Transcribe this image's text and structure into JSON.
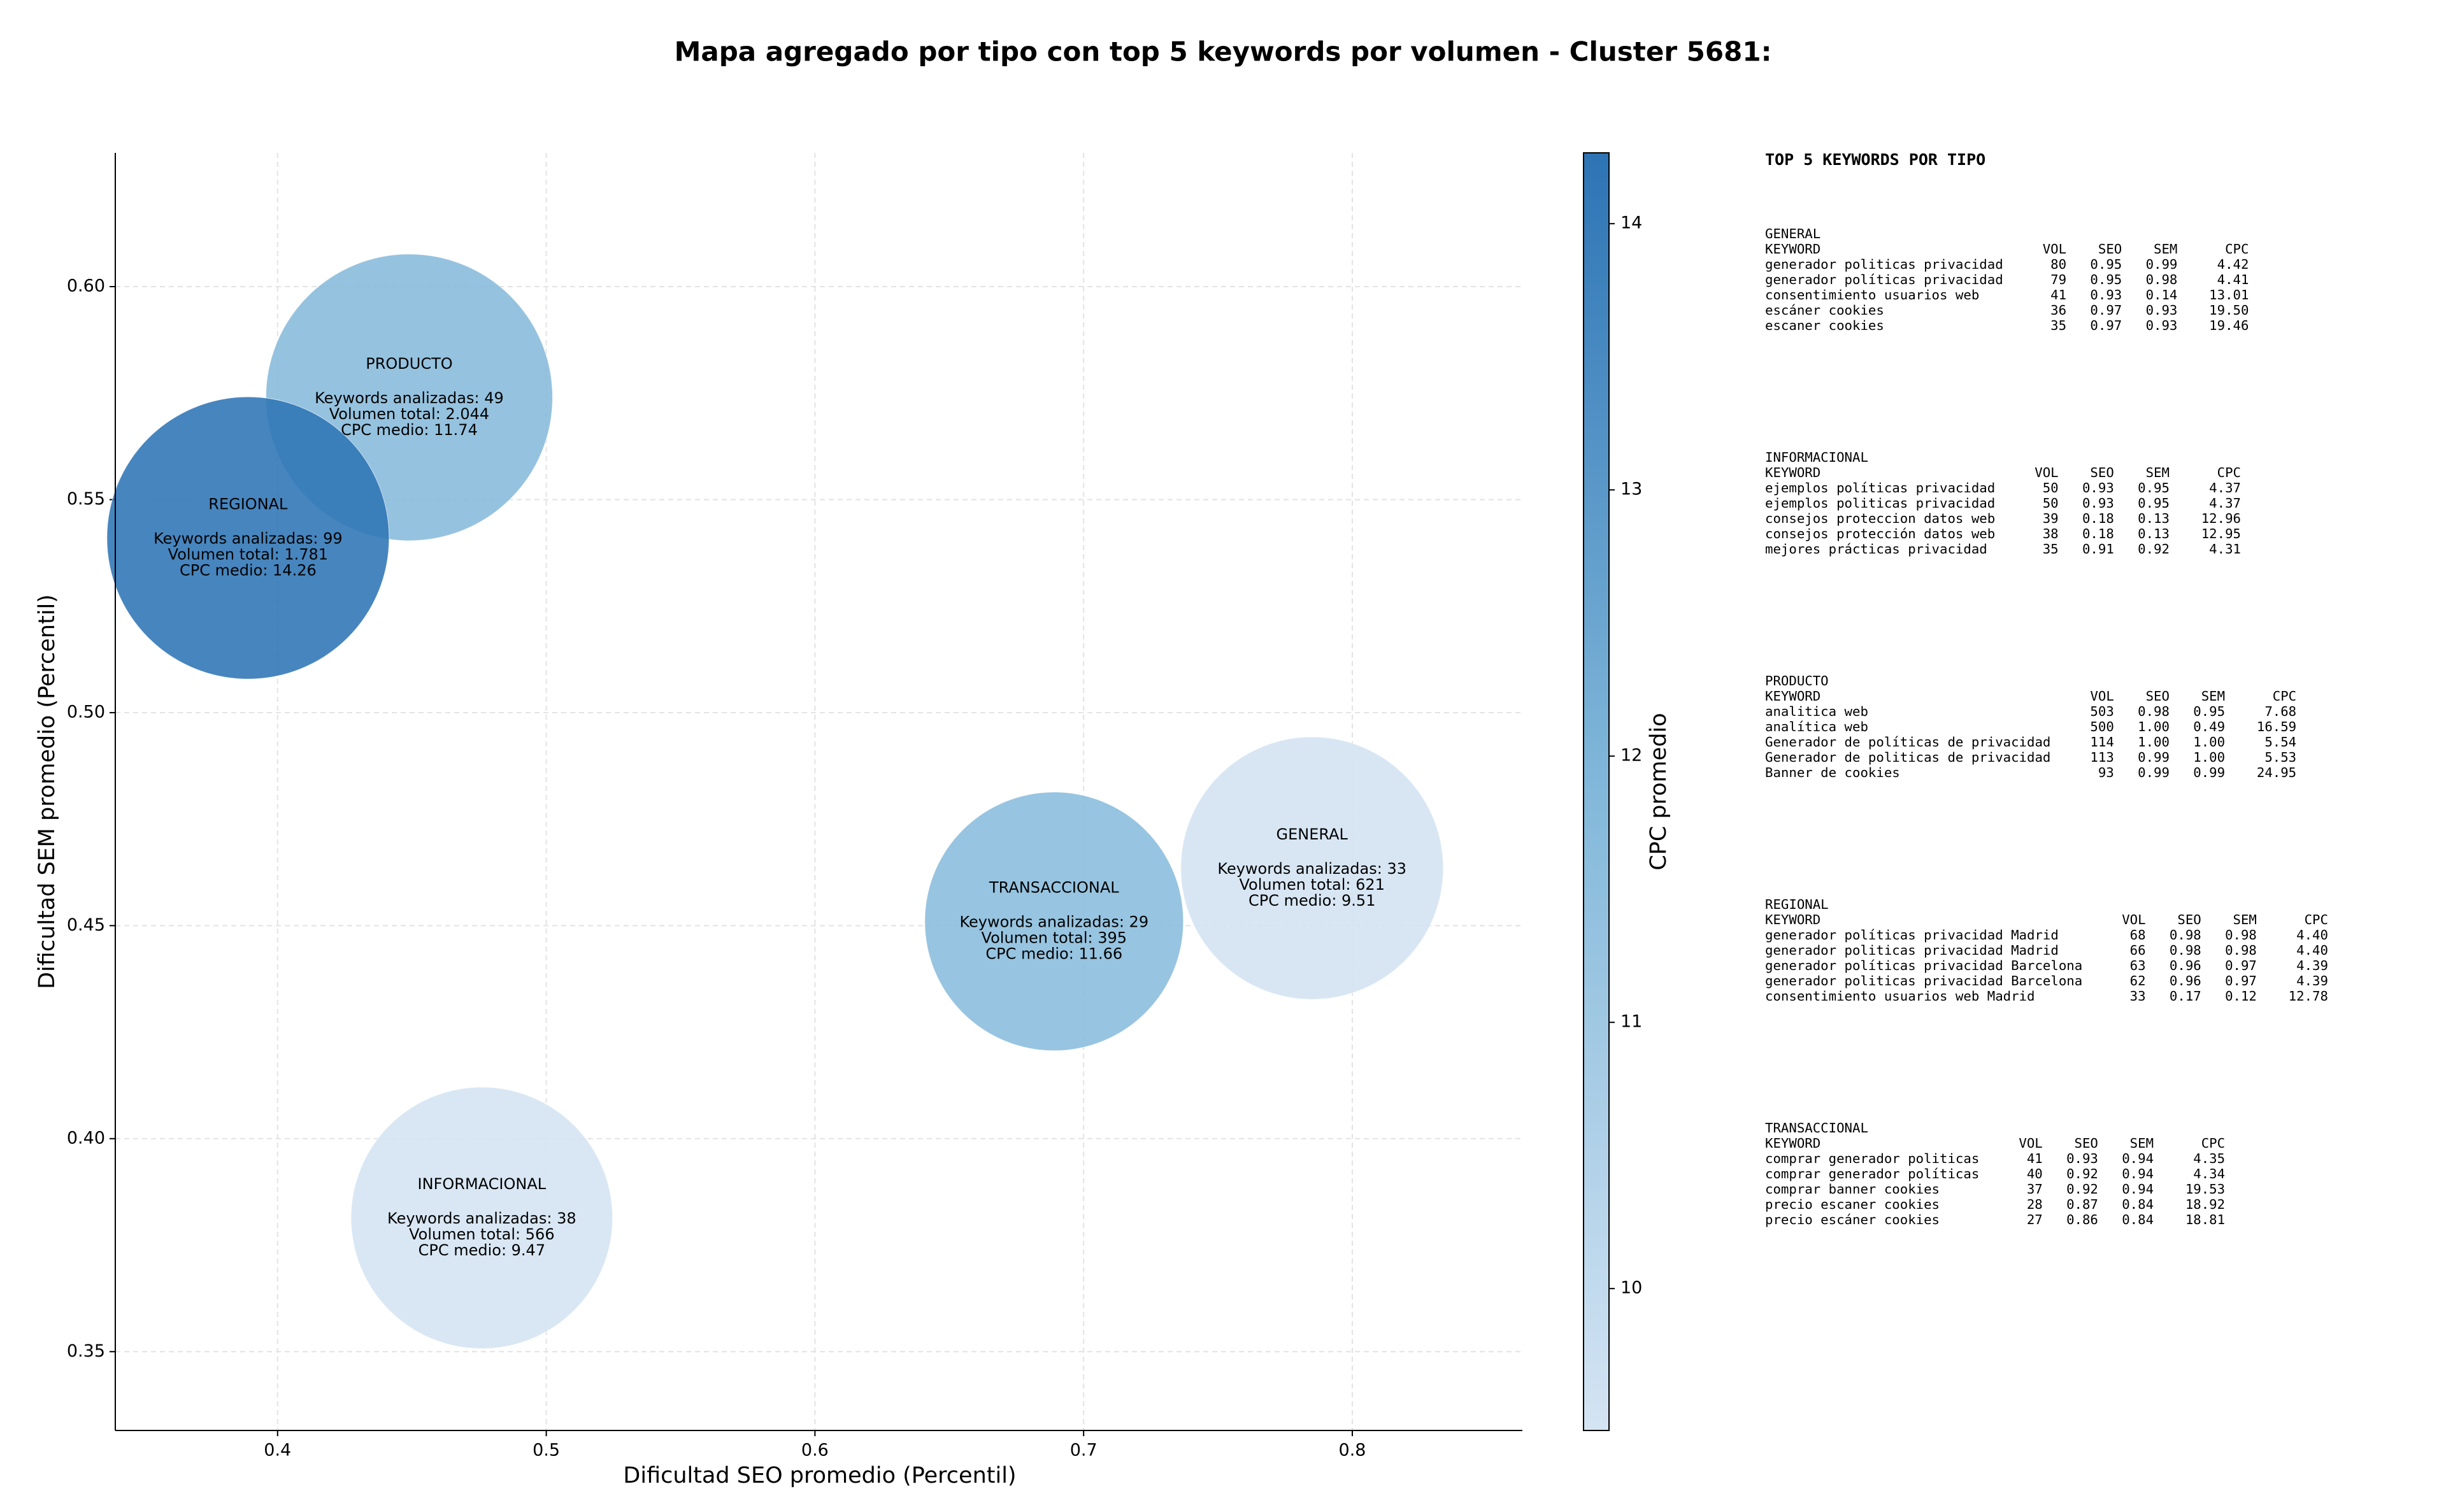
{
  "chart_data": {
    "type": "bubble",
    "title": "Mapa agregado por tipo con top 5 keywords por volumen - Cluster 5681:",
    "xlabel": "Dificultad SEO promedio (Percentil)",
    "ylabel": "Dificultad SEM promedio (Percentil)",
    "colorbar_label": "CPC promedio",
    "categories": [
      "GENERAL",
      "INFORMACIONAL",
      "PRODUCTO",
      "REGIONAL",
      "TRANSACCIONAL"
    ],
    "x": [
      0.785,
      0.476,
      0.449,
      0.389,
      0.689
    ],
    "values": [
      0.4635,
      0.3814,
      0.574,
      0.541,
      0.451
    ],
    "keywords": [
      33,
      38,
      49,
      99,
      29
    ],
    "keywords_labels": [
      "Keywords analizadas: 33",
      "Keywords analizadas: 38",
      "Keywords analizadas: 49",
      "Keywords analizadas: 99",
      "Keywords analizadas: 29"
    ],
    "volume": [
      621,
      566,
      2044,
      1781,
      395
    ],
    "volume_labels": [
      "Volumen total: 621",
      "Volumen total: 566",
      "Volumen total: 2.044",
      "Volumen total: 1.781",
      "Volumen total: 395"
    ],
    "cpc": [
      9.51,
      9.47,
      11.74,
      14.26,
      11.66
    ],
    "cpc_labels": [
      "CPC medio: 9.51",
      "CPC medio: 9.47",
      "CPC medio: 11.74",
      "CPC medio: 14.26",
      "CPC medio: 11.66"
    ],
    "colormap": [
      "#d4e4f3",
      "#82b8da",
      "#2d74b5"
    ],
    "xlim": [
      0.3396,
      0.8633
    ],
    "ylim": [
      0.3315,
      0.6314
    ],
    "clim": [
      9.467,
      14.266
    ],
    "xticks": [
      0.4,
      0.5,
      0.6,
      0.7,
      0.8
    ],
    "yticks": [
      0.35,
      0.4,
      0.45,
      0.5,
      0.55,
      0.6
    ],
    "yticks_display": [
      {
        "value": 0.35,
        "label": "0.35"
      },
      {
        "value": 0.4,
        "label": "0.40"
      },
      {
        "value": 0.45,
        "label": "0.45"
      },
      {
        "value": 0.5,
        "label": "0.50"
      },
      {
        "value": 0.55,
        "label": "0.55"
      },
      {
        "value": 0.6,
        "label": "0.60"
      }
    ],
    "cticks": [
      10,
      11,
      12,
      13,
      14
    ],
    "grid": true
  },
  "side_panel": {
    "title": "TOP 5 KEYWORDS POR TIPO",
    "columns": [
      "KEYWORD",
      "VOL",
      "SEO",
      "SEM",
      "CPC"
    ],
    "groups": [
      {
        "name": "GENERAL",
        "rows": [
          [
            "generador politicas privacidad",
            "80",
            "0.95",
            "0.99",
            "4.42"
          ],
          [
            "generador políticas privacidad",
            "79",
            "0.95",
            "0.98",
            "4.41"
          ],
          [
            "consentimiento usuarios web",
            "41",
            "0.93",
            "0.14",
            "13.01"
          ],
          [
            "escáner cookies",
            "36",
            "0.97",
            "0.93",
            "19.50"
          ],
          [
            "escaner cookies",
            "35",
            "0.97",
            "0.93",
            "19.46"
          ]
        ]
      },
      {
        "name": "INFORMACIONAL",
        "rows": [
          [
            "ejemplos políticas privacidad",
            "50",
            "0.93",
            "0.95",
            "4.37"
          ],
          [
            "ejemplos politicas privacidad",
            "50",
            "0.93",
            "0.95",
            "4.37"
          ],
          [
            "consejos proteccion datos web",
            "39",
            "0.18",
            "0.13",
            "12.96"
          ],
          [
            "consejos protección datos web",
            "38",
            "0.18",
            "0.13",
            "12.95"
          ],
          [
            "mejores prácticas privacidad",
            "35",
            "0.91",
            "0.92",
            "4.31"
          ]
        ]
      },
      {
        "name": "PRODUCTO",
        "rows": [
          [
            "analitica web",
            "503",
            "0.98",
            "0.95",
            "7.68"
          ],
          [
            "analítica web",
            "500",
            "1.00",
            "0.49",
            "16.59"
          ],
          [
            "Generador de políticas de privacidad",
            "114",
            "1.00",
            "1.00",
            "5.54"
          ],
          [
            "Generador de politicas de privacidad",
            "113",
            "0.99",
            "1.00",
            "5.53"
          ],
          [
            "Banner de cookies",
            "93",
            "0.99",
            "0.99",
            "24.95"
          ]
        ]
      },
      {
        "name": "REGIONAL",
        "rows": [
          [
            "generador políticas privacidad Madrid",
            "68",
            "0.98",
            "0.98",
            "4.40"
          ],
          [
            "generador politicas privacidad Madrid",
            "66",
            "0.98",
            "0.98",
            "4.40"
          ],
          [
            "generador políticas privacidad Barcelona",
            "63",
            "0.96",
            "0.97",
            "4.39"
          ],
          [
            "generador politicas privacidad Barcelona",
            "62",
            "0.96",
            "0.97",
            "4.39"
          ],
          [
            "consentimiento usuarios web Madrid",
            "33",
            "0.17",
            "0.12",
            "12.78"
          ]
        ]
      },
      {
        "name": "TRANSACCIONAL",
        "rows": [
          [
            "comprar generador politicas",
            "41",
            "0.93",
            "0.94",
            "4.35"
          ],
          [
            "comprar generador políticas",
            "40",
            "0.92",
            "0.94",
            "4.34"
          ],
          [
            "comprar banner cookies",
            "37",
            "0.92",
            "0.94",
            "19.53"
          ],
          [
            "precio escaner cookies",
            "28",
            "0.87",
            "0.84",
            "18.92"
          ],
          [
            "precio escáner cookies",
            "27",
            "0.86",
            "0.84",
            "18.81"
          ]
        ]
      }
    ]
  }
}
